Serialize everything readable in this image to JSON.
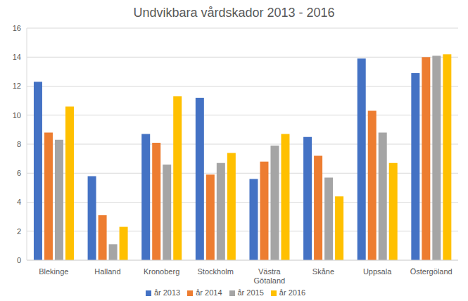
{
  "chart_data": {
    "type": "bar",
    "title": "Undvikbara vårdskador 2013 - 2016",
    "categories": [
      "Blekinge",
      "Halland",
      "Kronoberg",
      "Stockholm",
      "Västra Götaland",
      "Skåne",
      "Uppsala",
      "Östergöland"
    ],
    "series": [
      {
        "name": "år 2013",
        "color": "#4472c4",
        "values": [
          12.3,
          5.8,
          8.7,
          11.2,
          5.6,
          8.5,
          13.9,
          12.9
        ]
      },
      {
        "name": "år 2014",
        "color": "#ed7d31",
        "values": [
          8.8,
          3.1,
          8.1,
          5.9,
          6.8,
          7.2,
          10.3,
          14.0
        ]
      },
      {
        "name": "år 2015",
        "color": "#a5a5a5",
        "values": [
          8.3,
          1.1,
          6.6,
          6.7,
          7.9,
          5.7,
          8.8,
          14.1
        ]
      },
      {
        "name": "år 2016",
        "color": "#ffc000",
        "values": [
          10.6,
          2.3,
          11.3,
          7.4,
          8.7,
          4.4,
          6.7,
          14.2
        ]
      }
    ],
    "ylim": [
      0,
      16
    ],
    "yticks": [
      0,
      2,
      4,
      6,
      8,
      10,
      12,
      14,
      16
    ],
    "grid": true,
    "legend": "bottom"
  }
}
